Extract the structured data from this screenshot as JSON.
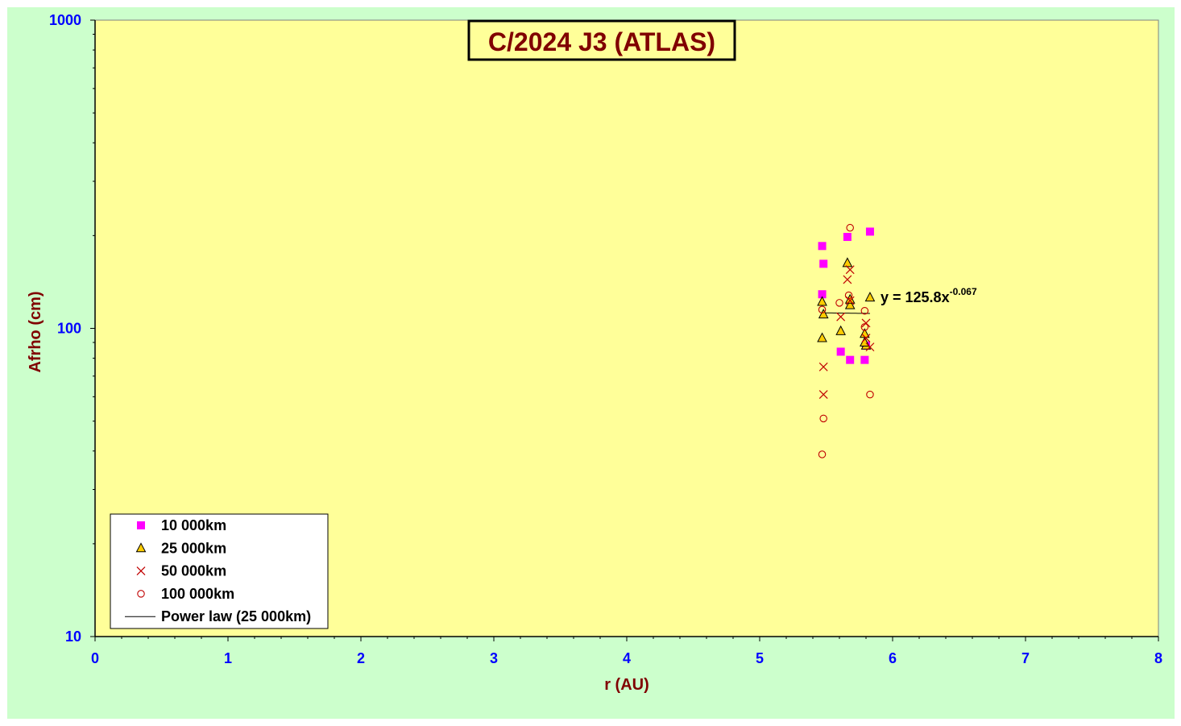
{
  "chart_data": {
    "type": "scatter",
    "title": "C/2024 J3 (ATLAS)",
    "xlabel": "r (AU)",
    "ylabel": "Afrho (cm)",
    "xlim": [
      0,
      8
    ],
    "ylim": [
      10,
      1000
    ],
    "yscale": "log",
    "x_ticks": [
      "0",
      "1",
      "2",
      "3",
      "4",
      "5",
      "6",
      "7",
      "8"
    ],
    "y_ticks": [
      "10",
      "100",
      "1000"
    ],
    "grid": false,
    "legend_position": "bottom-left",
    "colors": {
      "figure_bg": "#ccffcc",
      "plot_bg": "#ffff99",
      "tick_label": "#0000ff",
      "axis_title": "#800000",
      "title_text": "#800000"
    },
    "series": [
      {
        "name": "10 000km",
        "marker": "square",
        "color": "#ff00ff",
        "x": [
          5.47,
          5.48,
          5.47,
          5.61,
          5.66,
          5.68,
          5.79,
          5.8,
          5.83
        ],
        "y": [
          185,
          162,
          129,
          84,
          198,
          79,
          79,
          88,
          206
        ]
      },
      {
        "name": "25 000km",
        "marker": "triangle",
        "color": "#ffcc00",
        "x": [
          5.47,
          5.48,
          5.47,
          5.61,
          5.66,
          5.68,
          5.68,
          5.79,
          5.8,
          5.79,
          5.83
        ],
        "y": [
          122,
          111,
          93,
          98,
          163,
          119,
          124,
          96,
          88,
          90,
          126
        ]
      },
      {
        "name": "50 000km",
        "marker": "x",
        "color": "#c00000",
        "x": [
          5.48,
          5.48,
          5.61,
          5.66,
          5.68,
          5.68,
          5.8,
          5.8,
          5.83
        ],
        "y": [
          75,
          61,
          109,
          144,
          155,
          123,
          104,
          93,
          87
        ]
      },
      {
        "name": "100 000km",
        "marker": "circle",
        "color": "#c00000",
        "x": [
          5.47,
          5.48,
          5.47,
          5.6,
          5.67,
          5.68,
          5.79,
          5.79,
          5.83
        ],
        "y": [
          39,
          51,
          115,
          121,
          128,
          212,
          114,
          101,
          61
        ]
      }
    ],
    "trendline": {
      "name": "Power law (25 000km)",
      "color": "#000000",
      "coefficient": 125.8,
      "exponent": -0.067,
      "x_range": [
        5.47,
        5.83
      ],
      "equation_base": "y = 125.8x",
      "equation_exponent": "-0.067"
    }
  }
}
